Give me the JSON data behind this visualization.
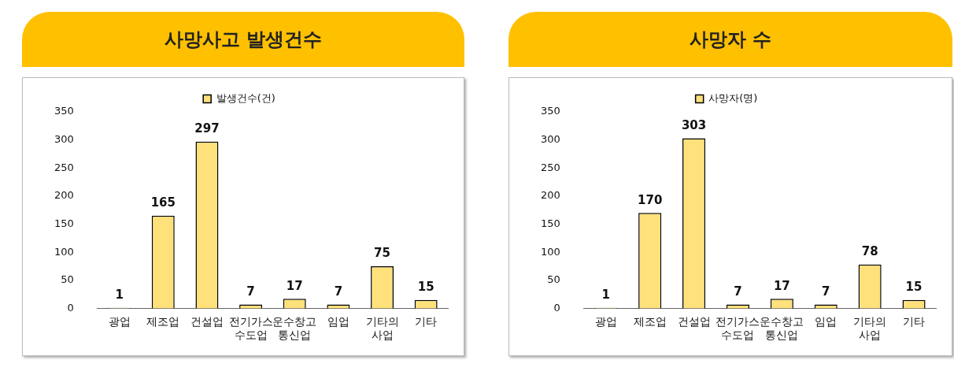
{
  "chart_data": [
    {
      "type": "bar",
      "title": "사망사고 발생건수",
      "categories": [
        "광업",
        "제조업",
        "건설업",
        "전기가스 수도업",
        "운수창고 통신업",
        "임업",
        "기타의 사업",
        "기타"
      ],
      "series": [
        {
          "name": "발생건수(건)",
          "color": "#ffe17b",
          "values": [
            1,
            165,
            297,
            7,
            17,
            7,
            75,
            15
          ]
        }
      ],
      "ylim": [
        0,
        350
      ],
      "yticks": [
        0,
        50,
        100,
        150,
        200,
        250,
        300,
        350
      ],
      "grid": false,
      "legend": "top",
      "data_labels": true
    },
    {
      "type": "bar",
      "title": "사망자 수",
      "categories": [
        "광업",
        "제조업",
        "건설업",
        "전기가스 수도업",
        "운수창고 통신업",
        "임업",
        "기타의 사업",
        "기타"
      ],
      "series": [
        {
          "name": "사망자(명)",
          "color": "#ffe17b",
          "values": [
            1,
            170,
            303,
            7,
            17,
            7,
            78,
            15
          ]
        }
      ],
      "ylim": [
        0,
        350
      ],
      "yticks": [
        0,
        50,
        100,
        150,
        200,
        250,
        300,
        350
      ],
      "grid": false,
      "legend": "top",
      "data_labels": true
    }
  ]
}
